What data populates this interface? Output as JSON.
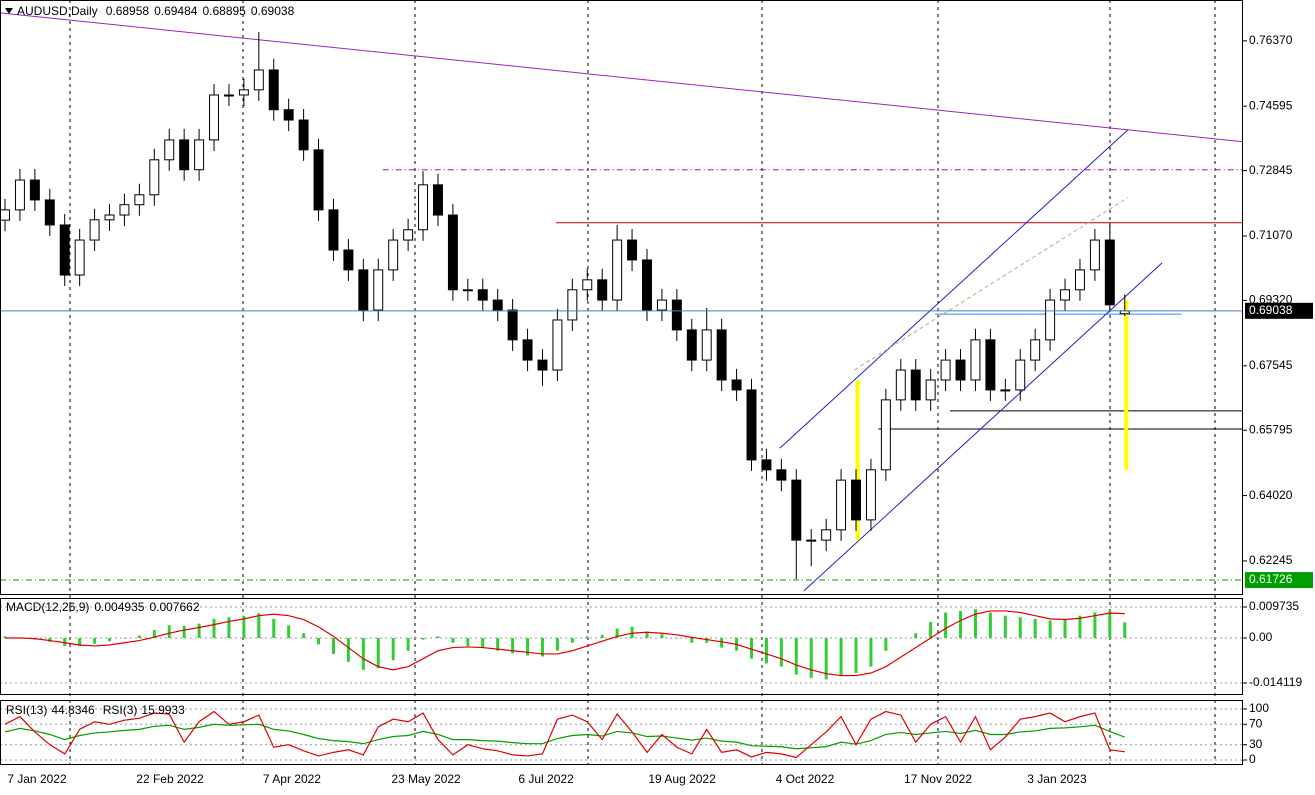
{
  "chart_data": [
    {
      "type": "candlestick",
      "title": "AUDUSD,Daily",
      "xlim": [
        -0.335,
        82.92
      ],
      "xticks": [
        {
          "value": 2.14,
          "label": "7 Jan 2022"
        },
        {
          "value": 11.05,
          "label": "22 Feb 2022"
        },
        {
          "value": 19.22,
          "label": "7 Apr 2022"
        },
        {
          "value": 28.2,
          "label": "23 May 2022"
        },
        {
          "value": 36.24,
          "label": "6 Jul 2022"
        },
        {
          "value": 45.35,
          "label": "19 Aug 2022"
        },
        {
          "value": 53.58,
          "label": "4 Oct 2022"
        },
        {
          "value": 62.49,
          "label": "17 Nov 2022"
        },
        {
          "value": 70.46,
          "label": "3 Jan 2023"
        }
      ],
      "ylim": [
        0.6132,
        0.7748
      ],
      "yticks": [
        {
          "value": 0.7637,
          "label": "0.76370"
        },
        {
          "value": 0.74595,
          "label": "0.74595"
        },
        {
          "value": 0.72845,
          "label": "0.72845"
        },
        {
          "value": 0.7107,
          "label": "0.71070"
        },
        {
          "value": 0.6932,
          "label": "0.69320"
        },
        {
          "value": 0.67545,
          "label": "0.67545"
        },
        {
          "value": 0.65795,
          "label": "0.65795"
        },
        {
          "value": 0.6402,
          "label": "0.64020"
        },
        {
          "value": 0.62245,
          "label": "0.62245"
        }
      ],
      "open": [
        0.715,
        0.7178,
        0.7259,
        0.7205,
        0.7137,
        0.7001,
        0.7096,
        0.7151,
        0.7164,
        0.7192,
        0.7219,
        0.7314,
        0.7368,
        0.7287,
        0.7368,
        0.749,
        0.749,
        0.7504,
        0.7558,
        0.745,
        0.7422,
        0.7341,
        0.7178,
        0.7069,
        0.7015,
        0.6906,
        0.7015,
        0.7096,
        0.7124,
        0.7246,
        0.7164,
        0.6961,
        0.6961,
        0.6933,
        0.6906,
        0.6825,
        0.677,
        0.6743,
        0.6879,
        0.6961,
        0.6988,
        0.6933,
        0.7096,
        0.7042,
        0.6906,
        0.6933,
        0.6852,
        0.677,
        0.6852,
        0.6716,
        0.6689,
        0.6499,
        0.6472,
        0.6444,
        0.6281,
        0.6281,
        0.6309,
        0.6444,
        0.6336,
        0.6472,
        0.6662,
        0.6743,
        0.6662,
        0.6716,
        0.677,
        0.6716,
        0.6825,
        0.6689,
        0.6689,
        0.677,
        0.6825,
        0.6933,
        0.6961,
        0.7015,
        0.7096,
        0.68958
      ],
      "high": [
        0.7208,
        0.7289,
        0.7289,
        0.7235,
        0.7167,
        0.7126,
        0.7181,
        0.7194,
        0.7222,
        0.7249,
        0.7344,
        0.7398,
        0.7398,
        0.7398,
        0.752,
        0.752,
        0.7534,
        0.7661,
        0.7588,
        0.748,
        0.7452,
        0.7371,
        0.7208,
        0.7099,
        0.7045,
        0.7045,
        0.7126,
        0.7154,
        0.7283,
        0.7276,
        0.7194,
        0.6991,
        0.6991,
        0.6963,
        0.6936,
        0.6855,
        0.68,
        0.6909,
        0.6991,
        0.7018,
        0.7018,
        0.7137,
        0.7126,
        0.7072,
        0.6963,
        0.6963,
        0.6882,
        0.6912,
        0.6882,
        0.6746,
        0.6719,
        0.6529,
        0.6502,
        0.6474,
        0.6311,
        0.6339,
        0.6474,
        0.6474,
        0.6502,
        0.6692,
        0.6773,
        0.6773,
        0.6746,
        0.68,
        0.68,
        0.6855,
        0.6855,
        0.6719,
        0.68,
        0.6855,
        0.6963,
        0.6991,
        0.7045,
        0.7126,
        0.7142,
        0.69484
      ],
      "low": [
        0.712,
        0.7148,
        0.7175,
        0.7107,
        0.6971,
        0.6971,
        0.7066,
        0.7121,
        0.7134,
        0.7162,
        0.7189,
        0.7284,
        0.7257,
        0.7257,
        0.7338,
        0.746,
        0.746,
        0.7474,
        0.742,
        0.7392,
        0.7311,
        0.7148,
        0.7039,
        0.6985,
        0.6876,
        0.6876,
        0.6985,
        0.7066,
        0.7094,
        0.7134,
        0.6931,
        0.6931,
        0.6903,
        0.6876,
        0.6795,
        0.674,
        0.67,
        0.6713,
        0.6849,
        0.6931,
        0.6903,
        0.6903,
        0.7012,
        0.6876,
        0.6876,
        0.6822,
        0.674,
        0.674,
        0.6686,
        0.6659,
        0.6469,
        0.6442,
        0.6414,
        0.6175,
        0.621,
        0.6251,
        0.6279,
        0.6306,
        0.6306,
        0.6442,
        0.6632,
        0.6632,
        0.6632,
        0.6686,
        0.6686,
        0.6686,
        0.6659,
        0.6659,
        0.6659,
        0.674,
        0.6795,
        0.6903,
        0.6931,
        0.6985,
        0.69,
        0.68895
      ],
      "close": [
        0.7178,
        0.7259,
        0.7205,
        0.7137,
        0.7001,
        0.7096,
        0.7151,
        0.7164,
        0.7192,
        0.7219,
        0.7314,
        0.7368,
        0.7287,
        0.7368,
        0.749,
        0.749,
        0.7504,
        0.7558,
        0.745,
        0.7422,
        0.7341,
        0.7178,
        0.7069,
        0.7015,
        0.6906,
        0.7015,
        0.7096,
        0.7124,
        0.7246,
        0.7164,
        0.6961,
        0.6961,
        0.6933,
        0.6906,
        0.6825,
        0.677,
        0.6743,
        0.6879,
        0.6961,
        0.6988,
        0.6933,
        0.7096,
        0.7042,
        0.6906,
        0.6933,
        0.6852,
        0.677,
        0.6852,
        0.6716,
        0.6689,
        0.6499,
        0.6472,
        0.6444,
        0.6281,
        0.6281,
        0.6309,
        0.6444,
        0.6336,
        0.6472,
        0.6662,
        0.6743,
        0.6662,
        0.6716,
        0.677,
        0.6716,
        0.6825,
        0.6689,
        0.6689,
        0.677,
        0.6825,
        0.6933,
        0.6961,
        0.7015,
        0.7096,
        0.692,
        0.69038
      ],
      "bid_color": "#4a7ebb",
      "level": {
        "value": 0.61726,
        "color": "#00a000"
      },
      "drawings": [
        {
          "style": "solid",
          "color": "#a020c0",
          "x": [
            -0.335,
            82.92
          ],
          "y": [
            0.7713,
            0.7363
          ]
        },
        {
          "style": "dashdot",
          "color": "#c000c0",
          "x": [
            25.3,
            82.92
          ],
          "y": [
            0.7287,
            0.7287
          ]
        },
        {
          "style": "solid",
          "color": "#c00000",
          "x": [
            36.9,
            82.92
          ],
          "y": [
            0.7143,
            0.7143
          ]
        },
        {
          "style": "solid",
          "color": "#1e90ff",
          "x": [
            62.3,
            78.8
          ],
          "y": [
            0.6895,
            0.6895
          ]
        },
        {
          "style": "solid",
          "color": "#000000",
          "x": [
            63.3,
            82.92
          ],
          "y": [
            0.6632,
            0.6632
          ]
        },
        {
          "style": "solid",
          "color": "#000000",
          "x": [
            58.5,
            82.92
          ],
          "y": [
            0.6583,
            0.6583
          ]
        },
        {
          "style": "solid",
          "color": "#2020c0",
          "x": [
            51.9,
            75.2
          ],
          "y": [
            0.6531,
            0.7395
          ]
        },
        {
          "style": "solid",
          "color": "#2020c0",
          "x": [
            53.5,
            77.5
          ],
          "y": [
            0.6143,
            0.7034
          ]
        },
        {
          "style": "dashed",
          "color": "#c8a878",
          "x": [
            56.9,
            75.2
          ],
          "y": [
            0.6743,
            0.7211
          ]
        },
        {
          "style": "thick",
          "color": "#ffff00",
          "x": [
            57.1,
            57.1
          ],
          "y": [
            0.6716,
            0.6281
          ]
        },
        {
          "style": "thick",
          "color": "#ffff00",
          "x": [
            75.1,
            75.1
          ],
          "y": [
            0.6933,
            0.6472
          ]
        }
      ]
    },
    {
      "type": "macd",
      "title": "MACD(12,26,9)",
      "ylim": [
        -0.0179,
        0.01256
      ],
      "yticks": [
        0.009735,
        {
          "value": 0,
          "label": "0.00"
        },
        -0.014119
      ],
      "series": [
        {
          "color": "#32cd32",
          "values": [
            0.0005,
            0.0002,
            -0.0005,
            -0.0012,
            -0.0025,
            -0.0025,
            -0.0018,
            -0.001,
            -0.0002,
            0.0008,
            0.0025,
            0.004,
            0.0038,
            0.0045,
            0.006,
            0.0065,
            0.007,
            0.0078,
            0.006,
            0.004,
            0.0015,
            -0.002,
            -0.005,
            -0.0075,
            -0.01,
            -0.0095,
            -0.007,
            -0.004,
            -0.0005,
            0.0005,
            -0.0015,
            -0.0025,
            -0.003,
            -0.004,
            -0.0048,
            -0.0055,
            -0.0058,
            -0.004,
            -0.0015,
            0.0005,
            0.001,
            0.003,
            0.0035,
            0.002,
            0.0012,
            0.0,
            -0.0015,
            -0.0015,
            -0.003,
            -0.004,
            -0.0065,
            -0.008,
            -0.009,
            -0.0115,
            -0.0125,
            -0.013,
            -0.012,
            -0.011,
            -0.009,
            -0.004,
            0.0,
            0.0015,
            0.005,
            0.008,
            0.0085,
            0.009,
            0.008,
            0.007,
            0.0065,
            0.006,
            0.0055,
            0.006,
            0.007,
            0.008,
            0.0085,
            0.004935
          ]
        },
        {
          "color": "#e00000",
          "values": [
            0.0,
            0.0,
            -0.0002,
            -0.0008,
            -0.0015,
            -0.0022,
            -0.0025,
            -0.0022,
            -0.0015,
            -0.0008,
            0.0003,
            0.0015,
            0.0025,
            0.0033,
            0.0042,
            0.0052,
            0.006,
            0.007,
            0.0075,
            0.007,
            0.0058,
            0.0035,
            0.0005,
            -0.003,
            -0.0065,
            -0.009,
            -0.01,
            -0.009,
            -0.0065,
            -0.004,
            -0.003,
            -0.0028,
            -0.003,
            -0.0035,
            -0.004,
            -0.0045,
            -0.005,
            -0.005,
            -0.004,
            -0.0025,
            -0.001,
            0.0005,
            0.0015,
            0.0018,
            0.0015,
            0.001,
            0.0002,
            -0.0005,
            -0.0012,
            -0.002,
            -0.0035,
            -0.005,
            -0.0065,
            -0.0085,
            -0.01,
            -0.0112,
            -0.0118,
            -0.0118,
            -0.011,
            -0.009,
            -0.006,
            -0.003,
            0.0,
            0.003,
            0.0055,
            0.0075,
            0.0085,
            0.0085,
            0.008,
            0.007,
            0.006,
            0.0058,
            0.0062,
            0.007,
            0.0078,
            0.007662
          ]
        }
      ]
    },
    {
      "type": "line",
      "ylim": [
        -9.8,
        117.6
      ],
      "yticks": [
        100,
        70,
        30,
        0
      ],
      "series": [
        {
          "name": "RSI(13)",
          "color": "#00a000",
          "values": [
            55,
            62,
            57,
            50,
            40,
            48,
            53,
            55,
            58,
            60,
            66,
            68,
            60,
            64,
            70,
            68,
            69,
            70,
            60,
            57,
            50,
            42,
            38,
            36,
            32,
            40,
            46,
            48,
            56,
            50,
            40,
            40,
            38,
            37,
            34,
            32,
            32,
            42,
            48,
            50,
            47,
            56,
            53,
            46,
            47,
            43,
            39,
            43,
            37,
            35,
            28,
            27,
            26,
            22,
            24,
            26,
            35,
            31,
            38,
            50,
            54,
            50,
            53,
            56,
            52,
            58,
            50,
            50,
            55,
            57,
            62,
            63,
            65,
            68,
            56,
            44.8346
          ]
        },
        {
          "name": "RSI(3)",
          "color": "#e00000",
          "values": [
            70,
            85,
            55,
            30,
            12,
            60,
            75,
            70,
            78,
            82,
            92,
            90,
            35,
            75,
            95,
            70,
            75,
            88,
            25,
            30,
            18,
            8,
            15,
            20,
            10,
            65,
            80,
            75,
            92,
            40,
            10,
            30,
            22,
            18,
            10,
            8,
            12,
            80,
            88,
            75,
            40,
            90,
            55,
            15,
            50,
            25,
            12,
            60,
            15,
            20,
            6,
            15,
            12,
            5,
            30,
            55,
            85,
            30,
            80,
            95,
            88,
            35,
            70,
            85,
            35,
            85,
            20,
            45,
            80,
            85,
            92,
            75,
            85,
            92,
            20,
            15.9933
          ]
        }
      ]
    }
  ]
}
